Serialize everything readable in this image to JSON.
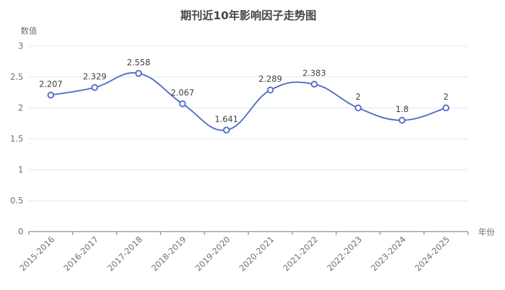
{
  "chart_data": {
    "type": "line",
    "title": "期刊近10年影响因子走势图",
    "ylabel": "数值",
    "xlabel": "年份",
    "ylim": [
      0,
      3
    ],
    "yticks": [
      "0",
      "0.5",
      "1",
      "1.5",
      "2",
      "2.5",
      "3"
    ],
    "categories": [
      "2015-2016",
      "2016-2017",
      "2017-2018",
      "2018-2019",
      "2019-2020",
      "2020-2021",
      "2021-2022",
      "2022-2023",
      "2023-2024",
      "2024-2025"
    ],
    "series": [
      {
        "values": [
          2.207,
          2.329,
          2.558,
          2.067,
          1.641,
          2.289,
          2.383,
          2,
          1.8,
          2
        ]
      }
    ],
    "data_labels": [
      "2.207",
      "2.329",
      "2.558",
      "2.067",
      "1.641",
      "2.289",
      "2.383",
      "2",
      "1.8",
      "2"
    ],
    "smooth": true,
    "grid": true,
    "colors": {
      "series": "#5470c6",
      "marker_fill": "#ffffff"
    }
  }
}
